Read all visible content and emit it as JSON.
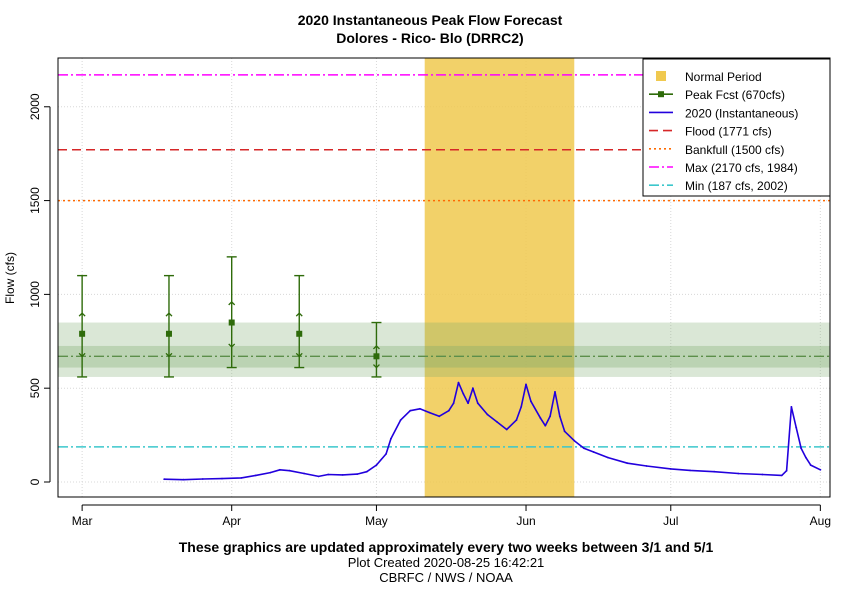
{
  "chart_data": {
    "type": "line",
    "title": "2020 Instantaneous Peak Flow Forecast",
    "subtitle": "Dolores - Rico- Blo (DRRC2)",
    "ylabel": "Flow (cfs)",
    "xlabel": "",
    "xlim": [
      "2020-02-25",
      "2020-08-03"
    ],
    "ylim": [
      -80,
      2260
    ],
    "x_ticks": [
      {
        "label": "Mar",
        "date": "2020-03-01"
      },
      {
        "label": "Apr",
        "date": "2020-04-01"
      },
      {
        "label": "May",
        "date": "2020-05-01"
      },
      {
        "label": "Jun",
        "date": "2020-06-01"
      },
      {
        "label": "Jul",
        "date": "2020-07-01"
      },
      {
        "label": "Aug",
        "date": "2020-08-01"
      }
    ],
    "y_ticks": [
      0,
      500,
      1000,
      1500,
      2000
    ],
    "grid": true,
    "legend_placement": "top-right",
    "legend": [
      "Normal Period",
      "Peak Fcst (670cfs)",
      "2020  (Instantaneous)",
      "Flood (1771 cfs)",
      "Bankfull (1500 cfs)",
      "Max (2170 cfs, 1984)",
      "Min (187 cfs, 2002)"
    ],
    "normal_period": {
      "start": "2020-05-11",
      "end": "2020-06-11",
      "color": "#f0c94f"
    },
    "forecast_bands": {
      "outer": [
        560,
        850
      ],
      "inner": [
        610,
        725
      ],
      "median": 670,
      "color": "#7aa86a"
    },
    "thresholds": [
      {
        "name": "Flood",
        "value": 1771,
        "color": "#d62728",
        "dash": "dashed"
      },
      {
        "name": "Bankfull",
        "value": 1500,
        "color": "#ff6a00",
        "dash": "dotted"
      },
      {
        "name": "Max",
        "value": 2170,
        "color": "#ff00ff",
        "dash": "dashdot"
      },
      {
        "name": "Min",
        "value": 187,
        "color": "#3cc7cc",
        "dash": "dashdot"
      }
    ],
    "peak_forecasts": {
      "color": "#2e6b0a",
      "points": [
        {
          "date": "2020-03-01",
          "median": 790,
          "low": 560,
          "high": 1100,
          "q_low": 670,
          "q_high": 900
        },
        {
          "date": "2020-03-19",
          "median": 790,
          "low": 560,
          "high": 1100,
          "q_low": 670,
          "q_high": 900
        },
        {
          "date": "2020-04-01",
          "median": 850,
          "low": 610,
          "high": 1200,
          "q_low": 720,
          "q_high": 960
        },
        {
          "date": "2020-04-15",
          "median": 790,
          "low": 610,
          "high": 1100,
          "q_low": 670,
          "q_high": 900
        },
        {
          "date": "2020-05-01",
          "median": 670,
          "low": 560,
          "high": 850,
          "q_low": 610,
          "q_high": 725
        }
      ]
    },
    "series": [
      {
        "name": "2020  (Instantaneous)",
        "color": "#2200dd",
        "points": [
          [
            "2020-03-18",
            15
          ],
          [
            "2020-03-22",
            12
          ],
          [
            "2020-03-26",
            16
          ],
          [
            "2020-03-30",
            18
          ],
          [
            "2020-04-03",
            22
          ],
          [
            "2020-04-06",
            35
          ],
          [
            "2020-04-09",
            50
          ],
          [
            "2020-04-11",
            65
          ],
          [
            "2020-04-13",
            60
          ],
          [
            "2020-04-16",
            45
          ],
          [
            "2020-04-19",
            30
          ],
          [
            "2020-04-21",
            40
          ],
          [
            "2020-04-24",
            38
          ],
          [
            "2020-04-27",
            42
          ],
          [
            "2020-04-29",
            55
          ],
          [
            "2020-05-01",
            90
          ],
          [
            "2020-05-03",
            150
          ],
          [
            "2020-05-04",
            230
          ],
          [
            "2020-05-06",
            330
          ],
          [
            "2020-05-08",
            380
          ],
          [
            "2020-05-10",
            390
          ],
          [
            "2020-05-12",
            370
          ],
          [
            "2020-05-14",
            350
          ],
          [
            "2020-05-16",
            380
          ],
          [
            "2020-05-17",
            420
          ],
          [
            "2020-05-18",
            530
          ],
          [
            "2020-05-19",
            470
          ],
          [
            "2020-05-20",
            420
          ],
          [
            "2020-05-21",
            500
          ],
          [
            "2020-05-22",
            420
          ],
          [
            "2020-05-24",
            360
          ],
          [
            "2020-05-26",
            320
          ],
          [
            "2020-05-28",
            280
          ],
          [
            "2020-05-30",
            330
          ],
          [
            "2020-05-31",
            400
          ],
          [
            "2020-06-01",
            520
          ],
          [
            "2020-06-02",
            430
          ],
          [
            "2020-06-04",
            340
          ],
          [
            "2020-06-05",
            300
          ],
          [
            "2020-06-06",
            350
          ],
          [
            "2020-06-07",
            480
          ],
          [
            "2020-06-08",
            350
          ],
          [
            "2020-06-09",
            270
          ],
          [
            "2020-06-11",
            220
          ],
          [
            "2020-06-13",
            180
          ],
          [
            "2020-06-15",
            160
          ],
          [
            "2020-06-18",
            130
          ],
          [
            "2020-06-22",
            100
          ],
          [
            "2020-06-26",
            85
          ],
          [
            "2020-07-01",
            70
          ],
          [
            "2020-07-05",
            62
          ],
          [
            "2020-07-10",
            55
          ],
          [
            "2020-07-15",
            45
          ],
          [
            "2020-07-20",
            40
          ],
          [
            "2020-07-24",
            35
          ],
          [
            "2020-07-25",
            60
          ],
          [
            "2020-07-26",
            400
          ],
          [
            "2020-07-27",
            290
          ],
          [
            "2020-07-28",
            180
          ],
          [
            "2020-07-29",
            130
          ],
          [
            "2020-07-30",
            90
          ],
          [
            "2020-08-01",
            65
          ]
        ]
      }
    ]
  },
  "footer": {
    "line1": "These graphics are updated approximately every two weeks between 3/1 and 5/1",
    "line2": "Plot Created 2020-08-25 16:42:21",
    "line3": "CBRFC / NWS / NOAA"
  }
}
